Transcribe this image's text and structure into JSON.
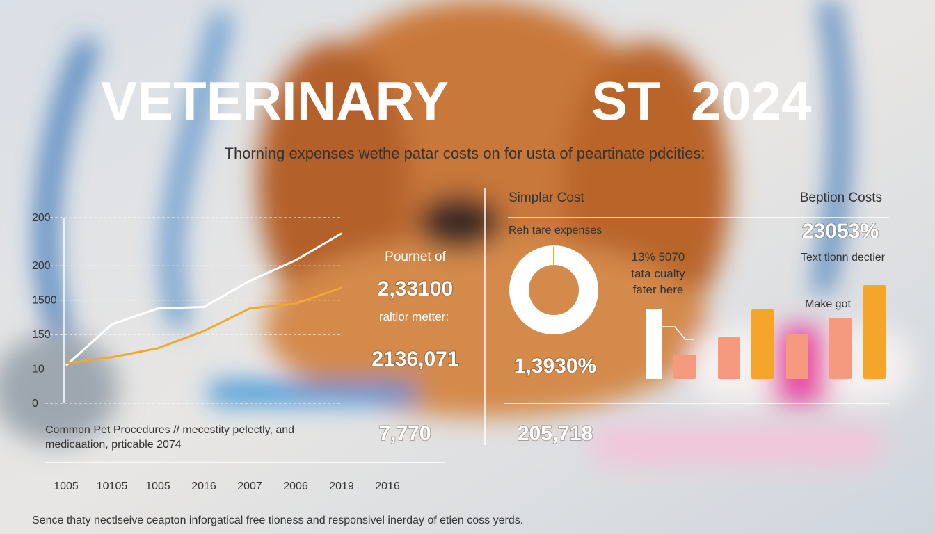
{
  "title": {
    "left": "VETERINARY",
    "right": "ST  2024"
  },
  "subtitle": "Thorning expenses wethe patar costs on for usta of peartinate pdcities:",
  "chart_data": [
    {
      "type": "line",
      "categories": [
        "1005",
        "10105",
        "1005",
        "2016",
        "2007",
        "2006",
        "2019",
        "2016"
      ],
      "ylim": [
        0,
        270
      ],
      "yticks": [
        0,
        {
          "value": 50,
          "label": "10"
        },
        150,
        {
          "value": 100,
          "label": "150"
        },
        {
          "value": 150,
          "label": "1500"
        },
        200,
        {
          "value": 270,
          "label": "200"
        }
      ],
      "series": [
        {
          "color": "#ffffff",
          "values": [
            55,
            115,
            138,
            140,
            178,
            208,
            247,
            null
          ]
        },
        {
          "color": "#f2a82a",
          "values": [
            58,
            67,
            80,
            105,
            138,
            145,
            168,
            null
          ]
        }
      ],
      "grid": true
    },
    {
      "type": "bar",
      "values": [
        100,
        35,
        60,
        100,
        65,
        88,
        135
      ],
      "colors": [
        "#ffffff",
        "#f59a7f",
        "#f59a7f",
        "#f5a52a",
        "#f59a7f",
        "#f59a7f",
        "#f5a52a"
      ]
    }
  ],
  "caption": [
    "Common Pet Procedures // mecestity pelectly, and",
    "medicaation, prticable 2074"
  ],
  "stats": {
    "heading": "Pournet of",
    "first": "2,33100",
    "label": "raltior metter:",
    "second": "2136,071",
    "third": "7,770"
  },
  "right_panel": {
    "left_heading": "Simplar Cost",
    "right_heading": "Beption Costs",
    "sub": "Reh tare expenses",
    "percent": "23053%",
    "note": [
      "13% 5070",
      "tata cualty",
      "fater here"
    ],
    "right_note": "Text tlonn dectier",
    "make": "Make got",
    "donut_value": "1,3930%",
    "bottom_value": "205,718"
  },
  "footer": "Sence thaty nectlseive ceapton inforgatical free tioness and responsivel inerday of etien coss yerds."
}
